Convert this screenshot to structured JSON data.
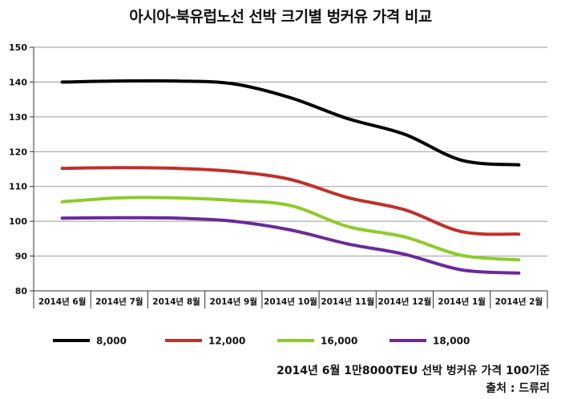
{
  "chart_data": {
    "type": "line",
    "title": "아시아-북유럽노선 선박 크기별 벙커유 가격 비교",
    "categories": [
      "2014년 6월",
      "2014년 7월",
      "2014년 8월",
      "2014년 9월",
      "2014년 10월",
      "2014년 11월",
      "2014년 12월",
      "2014년 1월",
      "2014년 2월"
    ],
    "ylim": [
      80,
      150
    ],
    "yticks": [
      80,
      90,
      100,
      110,
      120,
      130,
      140,
      150
    ],
    "grid": "horizontal",
    "legend_position": "bottom",
    "series": [
      {
        "name": "8,000",
        "color": "#000000",
        "values": [
          140,
          140.3,
          140.3,
          139.5,
          135.5,
          129.5,
          125,
          117.5,
          116.2
        ]
      },
      {
        "name": "12,000",
        "color": "#c0302a",
        "values": [
          115.2,
          115.4,
          115.2,
          114.3,
          112,
          106.8,
          103.3,
          97,
          96.3
        ]
      },
      {
        "name": "16,000",
        "color": "#8ccc2a",
        "values": [
          105.6,
          106.7,
          106.7,
          106,
          104.5,
          98.5,
          95.5,
          90.2,
          88.9
        ]
      },
      {
        "name": "18,000",
        "color": "#6a2a9a",
        "values": [
          100.9,
          101,
          100.9,
          100,
          97.5,
          93.5,
          90.5,
          86,
          85.1
        ]
      }
    ]
  },
  "note": "2014년 6월 1만8000TEU 선박 벙커유 가격 100기준",
  "source": "출처 : 드류리"
}
